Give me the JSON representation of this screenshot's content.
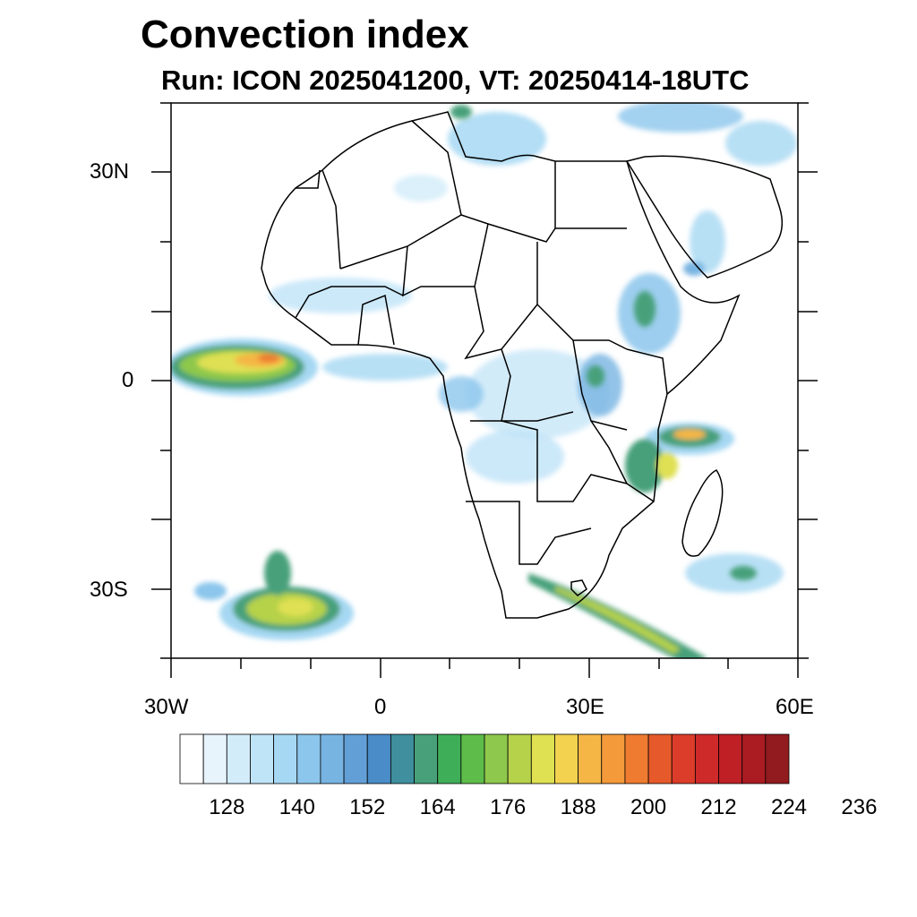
{
  "title": "Convection index",
  "subtitle": "Run: ICON 2025041200,  VT: 20250414-18UTC",
  "axes": {
    "lat_labels": [
      "30N",
      "0",
      "30S"
    ],
    "lon_labels": [
      "30W",
      "0",
      "30E",
      "60E"
    ]
  },
  "colorbar": {
    "labels": [
      "128",
      "140",
      "152",
      "164",
      "176",
      "188",
      "200",
      "212",
      "224",
      "236"
    ],
    "colors": [
      "#ffffff",
      "#e8f4fc",
      "#d2ecfa",
      "#bfe3f7",
      "#a6d8f3",
      "#8cc6ec",
      "#78b4e2",
      "#629fd6",
      "#4a8cc7",
      "#3f8f9e",
      "#47a07a",
      "#3fae58",
      "#5ebd4a",
      "#8ec84c",
      "#b6d24a",
      "#dfe052",
      "#f2d24e",
      "#f5b645",
      "#f49a3a",
      "#ef7b30",
      "#e6592b",
      "#dc3c2a",
      "#cf2a2a",
      "#bf2026",
      "#aa1c22",
      "#911b1e"
    ]
  },
  "map_data": {
    "domain": {
      "lon": [
        -30,
        60
      ],
      "lat": [
        -40,
        40
      ]
    },
    "highlights": [
      {
        "name": "atlantic-equatorial-cluster",
        "lon": -18,
        "lat": 2,
        "intensity": "high"
      },
      {
        "name": "south-atlantic-cluster",
        "lon": -17,
        "lat": -32,
        "intensity": "medium"
      },
      {
        "name": "mozambique-channel-cluster",
        "lon": 43,
        "lat": -8,
        "intensity": "high"
      },
      {
        "name": "ethiopian-highlands",
        "lon": 38,
        "lat": 10,
        "intensity": "medium"
      },
      {
        "name": "south-african-band",
        "lon": 35,
        "lat": -34,
        "intensity": "medium"
      }
    ]
  }
}
